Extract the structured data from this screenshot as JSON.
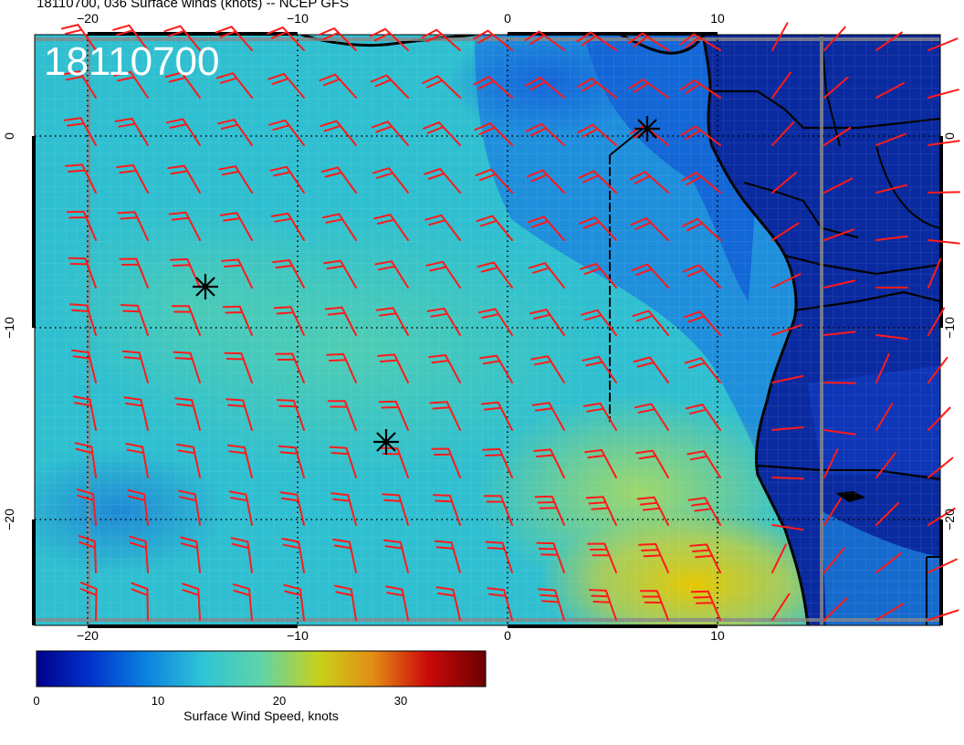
{
  "header": {
    "title": "18110700, 036 Surface winds (knots) -- NCEP GFS"
  },
  "map": {
    "stamp": "18110700",
    "lon_labels_top": [
      "−20",
      "−10",
      "0",
      "10"
    ],
    "lon_labels_bottom": [
      "−20",
      "−10",
      "0",
      "10"
    ],
    "lat_labels_left": [
      "0",
      "−10",
      "−20"
    ],
    "lat_labels_right": [
      "0",
      "−10",
      "−20"
    ],
    "markers": [
      {
        "name": "marker-1",
        "symbol": "asterisk"
      },
      {
        "name": "marker-2",
        "symbol": "asterisk"
      },
      {
        "name": "marker-3",
        "symbol": "asterisk"
      }
    ],
    "colors": {
      "barb": "#ff1a1a",
      "land": "#0a2aa0",
      "ocean": "#33c3cf",
      "coast": "#000000"
    }
  },
  "colorbar": {
    "label": "Surface Wind Speed, knots",
    "ticks": [
      "0",
      "10",
      "20",
      "30"
    ],
    "tick_values": [
      0,
      10,
      20,
      30
    ],
    "range": [
      0,
      37
    ],
    "colors": [
      "#00008b",
      "#0033cc",
      "#0b7fe0",
      "#2fc4d6",
      "#5fd4a8",
      "#c9d219",
      "#e38c14",
      "#cc0a0a",
      "#6b0000"
    ]
  }
}
